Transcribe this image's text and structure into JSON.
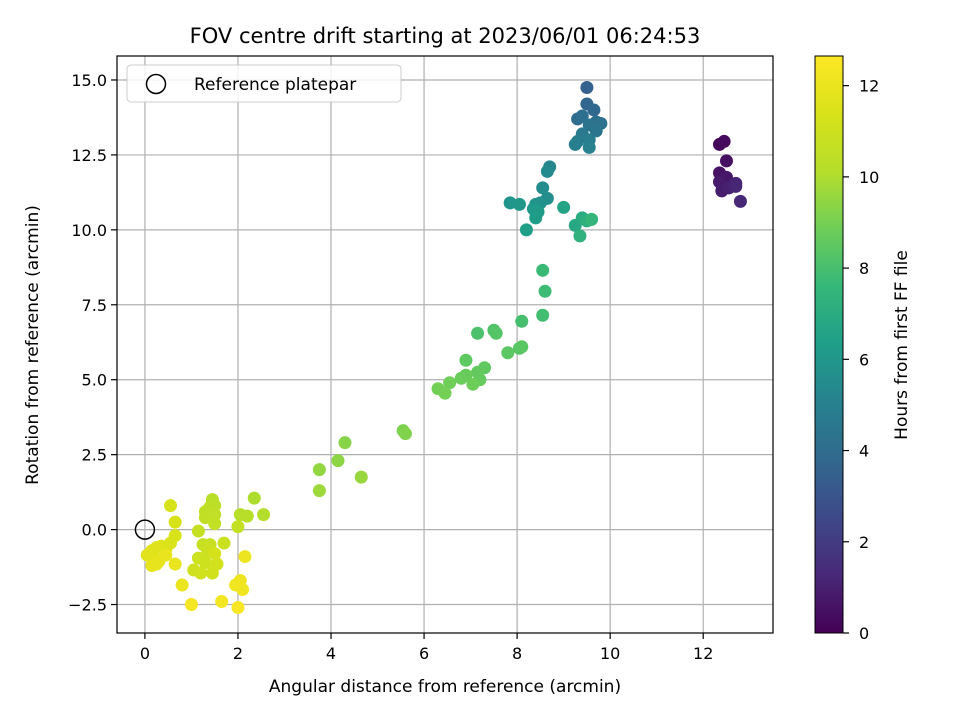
{
  "chart_data": {
    "type": "scatter",
    "title": "FOV centre drift starting at 2023/06/01 06:24:53",
    "xlabel": "Angular distance from reference (arcmin)",
    "ylabel": "Rotation from reference (arcmin)",
    "xlim": [
      -0.6,
      13.5
    ],
    "ylim": [
      -3.45,
      15.8
    ],
    "xticks": [
      0,
      2,
      4,
      6,
      8,
      10,
      12
    ],
    "yticks": [
      -2.5,
      0.0,
      2.5,
      5.0,
      7.5,
      10.0,
      12.5,
      15.0
    ],
    "ytick_labels": [
      "−2.5",
      "0.0",
      "2.5",
      "5.0",
      "7.5",
      "10.0",
      "12.5",
      "15.0"
    ],
    "grid": true,
    "legend": {
      "position": "top-left",
      "entries": [
        "Reference platepar"
      ]
    },
    "reference_point": {
      "x": 0,
      "y": 0
    },
    "colorbar": {
      "label": "Hours from first FF file",
      "colormap": "viridis",
      "range": [
        0,
        12.65
      ],
      "ticks": [
        0,
        2,
        4,
        6,
        8,
        10,
        12
      ]
    },
    "points": [
      {
        "x": 12.35,
        "y": 12.85,
        "c": 0.2
      },
      {
        "x": 12.45,
        "y": 12.95,
        "c": 0.3
      },
      {
        "x": 12.5,
        "y": 12.3,
        "c": 0.5
      },
      {
        "x": 12.35,
        "y": 11.9,
        "c": 0.6
      },
      {
        "x": 12.5,
        "y": 11.75,
        "c": 0.7
      },
      {
        "x": 12.35,
        "y": 11.6,
        "c": 0.8
      },
      {
        "x": 12.4,
        "y": 11.3,
        "c": 0.9
      },
      {
        "x": 12.55,
        "y": 11.4,
        "c": 1.0
      },
      {
        "x": 12.7,
        "y": 11.55,
        "c": 1.1
      },
      {
        "x": 12.7,
        "y": 11.45,
        "c": 1.2
      },
      {
        "x": 12.8,
        "y": 10.95,
        "c": 1.3
      },
      {
        "x": 9.5,
        "y": 14.75,
        "c": 3.5
      },
      {
        "x": 9.5,
        "y": 14.2,
        "c": 3.7
      },
      {
        "x": 9.65,
        "y": 14.0,
        "c": 3.8
      },
      {
        "x": 9.3,
        "y": 13.7,
        "c": 4.0
      },
      {
        "x": 9.4,
        "y": 13.8,
        "c": 4.1
      },
      {
        "x": 9.7,
        "y": 13.6,
        "c": 4.2
      },
      {
        "x": 9.8,
        "y": 13.55,
        "c": 4.3
      },
      {
        "x": 9.55,
        "y": 13.5,
        "c": 4.4
      },
      {
        "x": 9.7,
        "y": 13.3,
        "c": 4.5
      },
      {
        "x": 9.4,
        "y": 13.2,
        "c": 4.6
      },
      {
        "x": 9.3,
        "y": 12.95,
        "c": 4.7
      },
      {
        "x": 9.55,
        "y": 13.0,
        "c": 4.8
      },
      {
        "x": 9.25,
        "y": 12.85,
        "c": 4.9
      },
      {
        "x": 9.55,
        "y": 12.75,
        "c": 5.0
      },
      {
        "x": 8.7,
        "y": 12.1,
        "c": 5.3
      },
      {
        "x": 8.65,
        "y": 11.95,
        "c": 5.4
      },
      {
        "x": 8.55,
        "y": 11.4,
        "c": 5.5
      },
      {
        "x": 8.65,
        "y": 11.05,
        "c": 5.6
      },
      {
        "x": 8.5,
        "y": 10.9,
        "c": 5.7
      },
      {
        "x": 8.4,
        "y": 10.85,
        "c": 5.8
      },
      {
        "x": 7.85,
        "y": 10.9,
        "c": 5.9
      },
      {
        "x": 8.05,
        "y": 10.85,
        "c": 6.0
      },
      {
        "x": 8.35,
        "y": 10.7,
        "c": 6.1
      },
      {
        "x": 8.45,
        "y": 10.6,
        "c": 6.2
      },
      {
        "x": 8.4,
        "y": 10.4,
        "c": 6.3
      },
      {
        "x": 8.2,
        "y": 10.0,
        "c": 6.4
      },
      {
        "x": 9.0,
        "y": 10.75,
        "c": 6.6
      },
      {
        "x": 9.25,
        "y": 10.15,
        "c": 6.8
      },
      {
        "x": 9.4,
        "y": 10.4,
        "c": 7.0
      },
      {
        "x": 9.5,
        "y": 10.3,
        "c": 7.2
      },
      {
        "x": 9.35,
        "y": 9.8,
        "c": 7.3
      },
      {
        "x": 9.6,
        "y": 10.35,
        "c": 7.5
      },
      {
        "x": 8.55,
        "y": 8.65,
        "c": 7.7
      },
      {
        "x": 8.6,
        "y": 7.95,
        "c": 7.8
      },
      {
        "x": 8.55,
        "y": 7.15,
        "c": 7.9
      },
      {
        "x": 8.1,
        "y": 6.95,
        "c": 8.0
      },
      {
        "x": 7.15,
        "y": 6.55,
        "c": 8.1
      },
      {
        "x": 7.5,
        "y": 6.65,
        "c": 8.2
      },
      {
        "x": 7.55,
        "y": 6.55,
        "c": 8.3
      },
      {
        "x": 8.05,
        "y": 6.05,
        "c": 8.35
      },
      {
        "x": 8.1,
        "y": 6.1,
        "c": 8.4
      },
      {
        "x": 7.8,
        "y": 5.9,
        "c": 8.45
      },
      {
        "x": 6.9,
        "y": 5.65,
        "c": 8.5
      },
      {
        "x": 7.3,
        "y": 5.4,
        "c": 8.55
      },
      {
        "x": 7.15,
        "y": 5.25,
        "c": 8.6
      },
      {
        "x": 7.2,
        "y": 5.0,
        "c": 8.65
      },
      {
        "x": 6.9,
        "y": 5.15,
        "c": 8.7
      },
      {
        "x": 6.8,
        "y": 5.05,
        "c": 8.75
      },
      {
        "x": 7.05,
        "y": 4.85,
        "c": 8.8
      },
      {
        "x": 6.55,
        "y": 4.9,
        "c": 8.85
      },
      {
        "x": 6.3,
        "y": 4.7,
        "c": 8.9
      },
      {
        "x": 6.45,
        "y": 4.55,
        "c": 8.95
      },
      {
        "x": 5.55,
        "y": 3.3,
        "c": 9.1
      },
      {
        "x": 5.6,
        "y": 3.2,
        "c": 9.2
      },
      {
        "x": 4.3,
        "y": 2.9,
        "c": 9.3
      },
      {
        "x": 4.15,
        "y": 2.3,
        "c": 9.4
      },
      {
        "x": 3.75,
        "y": 2.0,
        "c": 9.5
      },
      {
        "x": 4.65,
        "y": 1.75,
        "c": 9.6
      },
      {
        "x": 3.75,
        "y": 1.3,
        "c": 9.7
      },
      {
        "x": 2.35,
        "y": 1.05,
        "c": 10.0
      },
      {
        "x": 2.55,
        "y": 0.5,
        "c": 10.1
      },
      {
        "x": 2.05,
        "y": 0.5,
        "c": 10.2
      },
      {
        "x": 2.2,
        "y": 0.45,
        "c": 10.25
      },
      {
        "x": 1.45,
        "y": 1.0,
        "c": 10.3
      },
      {
        "x": 1.5,
        "y": 0.8,
        "c": 10.35
      },
      {
        "x": 1.4,
        "y": 0.75,
        "c": 10.4
      },
      {
        "x": 1.3,
        "y": 0.6,
        "c": 10.45
      },
      {
        "x": 1.5,
        "y": 0.5,
        "c": 10.5
      },
      {
        "x": 1.3,
        "y": 0.4,
        "c": 10.55
      },
      {
        "x": 1.5,
        "y": 0.2,
        "c": 10.6
      },
      {
        "x": 2.0,
        "y": 0.1,
        "c": 10.65
      },
      {
        "x": 1.15,
        "y": -0.05,
        "c": 10.7
      },
      {
        "x": 1.25,
        "y": -0.5,
        "c": 10.75
      },
      {
        "x": 1.4,
        "y": -0.5,
        "c": 10.8
      },
      {
        "x": 1.7,
        "y": -0.45,
        "c": 10.85
      },
      {
        "x": 1.35,
        "y": -0.7,
        "c": 10.9
      },
      {
        "x": 1.15,
        "y": -0.95,
        "c": 10.95
      },
      {
        "x": 1.3,
        "y": -1.1,
        "c": 11.0
      },
      {
        "x": 1.05,
        "y": -1.35,
        "c": 11.05
      },
      {
        "x": 1.2,
        "y": -1.45,
        "c": 11.1
      },
      {
        "x": 1.45,
        "y": -1.45,
        "c": 11.15
      },
      {
        "x": 1.55,
        "y": -1.15,
        "c": 11.2
      },
      {
        "x": 1.5,
        "y": -0.8,
        "c": 11.25
      },
      {
        "x": 0.55,
        "y": 0.8,
        "c": 11.3
      },
      {
        "x": 0.65,
        "y": 0.25,
        "c": 11.35
      },
      {
        "x": 0.65,
        "y": -0.2,
        "c": 11.4
      },
      {
        "x": 0.55,
        "y": -0.45,
        "c": 11.45
      },
      {
        "x": 0.45,
        "y": -0.65,
        "c": 11.5
      },
      {
        "x": 0.35,
        "y": -0.55,
        "c": 11.55
      },
      {
        "x": 0.25,
        "y": -0.6,
        "c": 11.6
      },
      {
        "x": 0.15,
        "y": -0.7,
        "c": 11.65
      },
      {
        "x": 0.05,
        "y": -0.85,
        "c": 11.7
      },
      {
        "x": 0.2,
        "y": -0.95,
        "c": 11.75
      },
      {
        "x": 0.3,
        "y": -1.05,
        "c": 11.8
      },
      {
        "x": 0.15,
        "y": -1.2,
        "c": 11.85
      },
      {
        "x": 0.25,
        "y": -1.15,
        "c": 11.9
      },
      {
        "x": 0.45,
        "y": -0.85,
        "c": 11.95
      },
      {
        "x": 0.65,
        "y": -1.15,
        "c": 12.0
      },
      {
        "x": 0.8,
        "y": -1.85,
        "c": 12.05
      },
      {
        "x": 2.15,
        "y": -0.9,
        "c": 12.1
      },
      {
        "x": 2.05,
        "y": -1.7,
        "c": 12.15
      },
      {
        "x": 1.95,
        "y": -1.85,
        "c": 12.2
      },
      {
        "x": 2.1,
        "y": -2.0,
        "c": 12.25
      },
      {
        "x": 1.65,
        "y": -2.4,
        "c": 12.3
      },
      {
        "x": 1.0,
        "y": -2.5,
        "c": 12.35
      },
      {
        "x": 2.0,
        "y": -2.6,
        "c": 12.4
      }
    ]
  }
}
